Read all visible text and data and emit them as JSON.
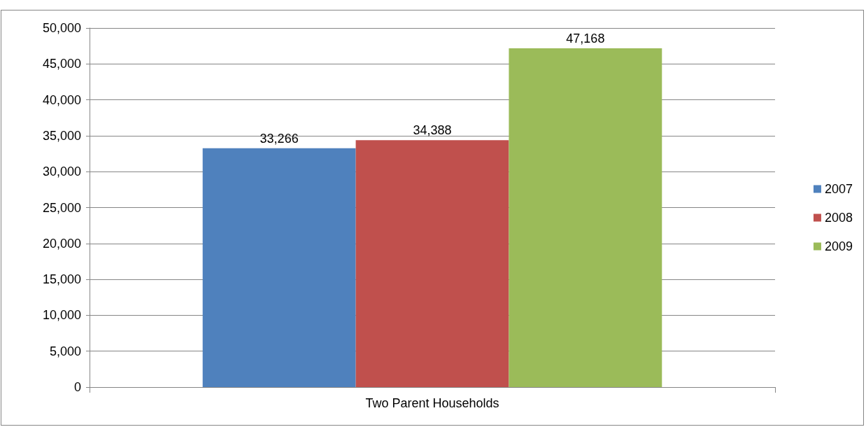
{
  "chart_data": {
    "type": "bar",
    "categories": [
      "Two Parent Households"
    ],
    "series": [
      {
        "name": "2007",
        "color": "#4f81bd",
        "values": [
          33266
        ],
        "value_labels": [
          "33,266"
        ]
      },
      {
        "name": "2008",
        "color": "#c0504d",
        "values": [
          34388
        ],
        "value_labels": [
          "34,388"
        ]
      },
      {
        "name": "2009",
        "color": "#9bbb59",
        "values": [
          47168
        ],
        "value_labels": [
          "47,168"
        ]
      }
    ],
    "ylim": [
      0,
      50000
    ],
    "yticks": [
      0,
      {
        "value": 5000,
        "label": "5,000"
      },
      {
        "value": 10000,
        "label": "10,000"
      },
      {
        "value": 15000,
        "label": "15,000"
      },
      {
        "value": 20000,
        "label": "20,000"
      },
      {
        "value": 25000,
        "label": "25,000"
      },
      {
        "value": 30000,
        "label": "30,000"
      },
      {
        "value": 35000,
        "label": "35,000"
      },
      {
        "value": 40000,
        "label": "40,000"
      },
      {
        "value": 45000,
        "label": "45,000"
      },
      {
        "value": 50000,
        "label": "50,000"
      }
    ],
    "grid": "y",
    "legend": "right"
  }
}
